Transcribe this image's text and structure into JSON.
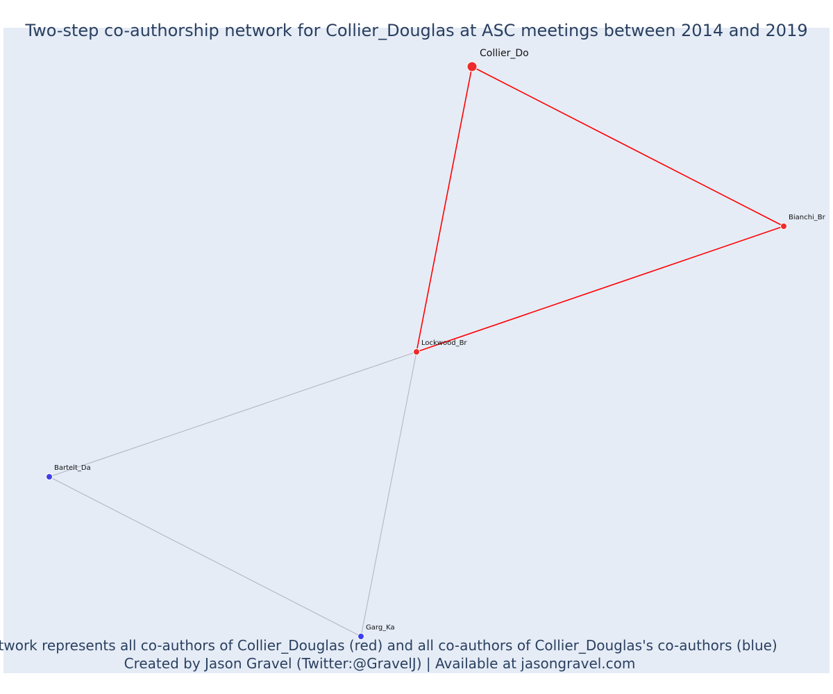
{
  "title": "Two-step co-authorship network for Collier_Douglas at ASC meetings between 2014 and 2019",
  "caption": {
    "line1": "Network represents all co-authors of Collier_Douglas (red) and all co-authors of Collier_Douglas's co-authors (blue)",
    "line2": "Created by Jason Gravel (Twitter:@GravelJ) | Available at jasongravel.com"
  },
  "colors": {
    "plot_background": "#e5ecf6",
    "first_degree": "#ee2b2b",
    "second_degree": "#3f3fe8",
    "first_degree_edge": "#ff0000",
    "second_degree_edge": "#b0b0c0",
    "text": "#2a3f5f"
  },
  "network": {
    "nodes": [
      {
        "id": "Collier_Do",
        "label": "Collier_Do",
        "group": "focal"
      },
      {
        "id": "Bianchi_Br",
        "label": "Bianchi_Br",
        "group": "co-author"
      },
      {
        "id": "Lockwood_Br",
        "label": "Lockwood_Br",
        "group": "co-author"
      },
      {
        "id": "Bartelt_Da",
        "label": "Bartelt_Da",
        "group": "co-author-of-co-author"
      },
      {
        "id": "Garg_Ka",
        "label": "Garg_Ka",
        "group": "co-author-of-co-author"
      }
    ],
    "edges": [
      {
        "source": "Collier_Do",
        "target": "Bianchi_Br",
        "group": "first"
      },
      {
        "source": "Collier_Do",
        "target": "Lockwood_Br",
        "group": "first"
      },
      {
        "source": "Bianchi_Br",
        "target": "Lockwood_Br",
        "group": "first"
      },
      {
        "source": "Lockwood_Br",
        "target": "Bartelt_Da",
        "group": "second"
      },
      {
        "source": "Lockwood_Br",
        "target": "Garg_Ka",
        "group": "second"
      },
      {
        "source": "Bartelt_Da",
        "target": "Garg_Ka",
        "group": "second"
      }
    ]
  }
}
